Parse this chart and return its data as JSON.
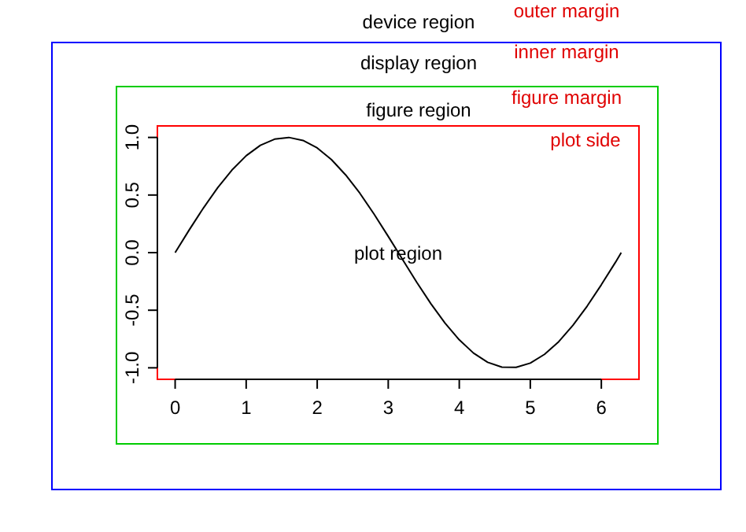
{
  "chart_data": {
    "type": "line",
    "x": [
      0,
      0.2,
      0.4,
      0.6,
      0.8,
      1.0,
      1.2,
      1.4,
      1.6,
      1.8,
      2.0,
      2.2,
      2.4,
      2.6,
      2.8,
      3.0,
      3.2,
      3.4,
      3.6,
      3.8,
      4.0,
      4.2,
      4.4,
      4.6,
      4.8,
      5.0,
      5.2,
      5.4,
      5.6,
      5.8,
      6.0,
      6.2,
      6.28
    ],
    "values": [
      0,
      0.199,
      0.389,
      0.565,
      0.717,
      0.841,
      0.932,
      0.985,
      1.0,
      0.974,
      0.909,
      0.808,
      0.675,
      0.516,
      0.335,
      0.141,
      -0.058,
      -0.256,
      -0.443,
      -0.612,
      -0.757,
      -0.872,
      -0.952,
      -0.994,
      -0.996,
      -0.959,
      -0.883,
      -0.773,
      -0.631,
      -0.465,
      -0.279,
      -0.083,
      0
    ],
    "color": "#000000",
    "xlim": [
      -0.25,
      6.53
    ],
    "ylim": [
      -1.1,
      1.1
    ],
    "xticks": [
      0,
      1,
      2,
      3,
      4,
      5,
      6
    ],
    "yticks": [
      {
        "value": -1,
        "label": "-1.0"
      },
      {
        "value": -0.5,
        "label": "-0.5"
      },
      {
        "value": 0,
        "label": "0.0"
      },
      {
        "value": 0.5,
        "label": "0.5"
      },
      {
        "value": 1,
        "label": "1.0"
      }
    ],
    "annotations": [
      "device region",
      "display region",
      "figure region",
      "plot region",
      "outer margin",
      "inner margin",
      "figure margin",
      "plot side"
    ]
  }
}
